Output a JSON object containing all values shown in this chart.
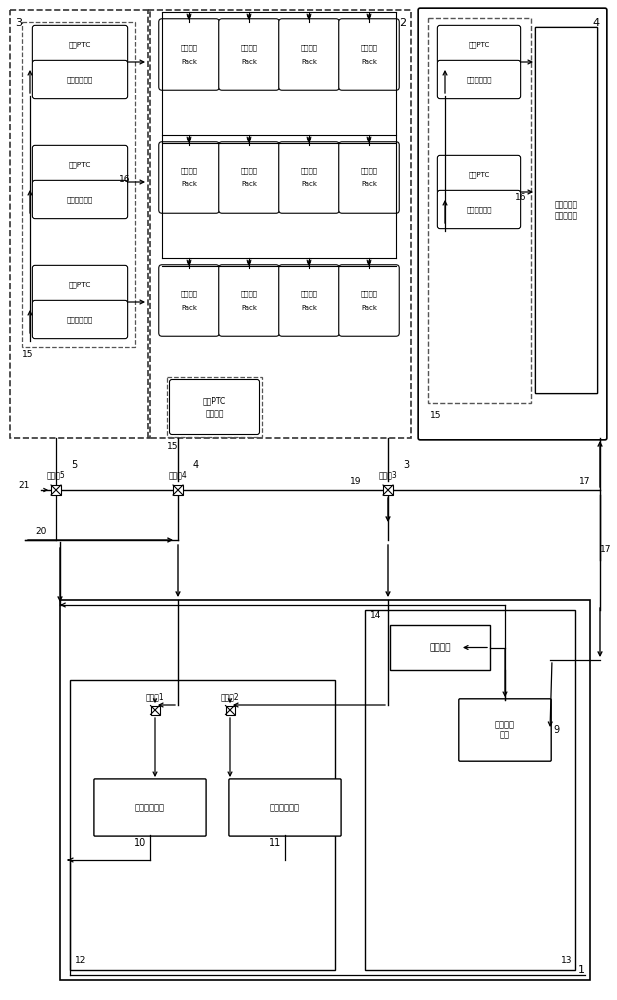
{
  "bg_color": "#ffffff",
  "lc": "#000000",
  "components": {
    "ptc_top": "加热PTC",
    "ptc_bot": "空调末端设备",
    "battery_pack_top": "电池液冷",
    "battery_pack_bot": "Pack",
    "ptc_module_top": "电池PTC",
    "ptc_module_bot": "加热模块",
    "expansion_tank": "膨胀水箱",
    "water_pump_top": "液体循环",
    "water_pump_bot": "水泵",
    "solenoid1": "电磁阀1",
    "solenoid2": "电磁阀2",
    "solenoid3": "电磁阀3",
    "solenoid4": "电磁阀4",
    "solenoid5": "电磁阀5",
    "air_chiller": "空调水冷机组",
    "air_cool": "风冷散热模块",
    "elec_devices": "电器设备及\n发热元器件"
  },
  "nums": {
    "n1": "1",
    "n2": "2",
    "n3": "3",
    "n4": "4",
    "n5": "5",
    "n9": "9",
    "n10": "10",
    "n11": "11",
    "n12": "12",
    "n13": "13",
    "n14": "14",
    "n15": "15",
    "n16": "16",
    "n17": "17",
    "n19": "19",
    "n20": "20",
    "n21": "21"
  }
}
